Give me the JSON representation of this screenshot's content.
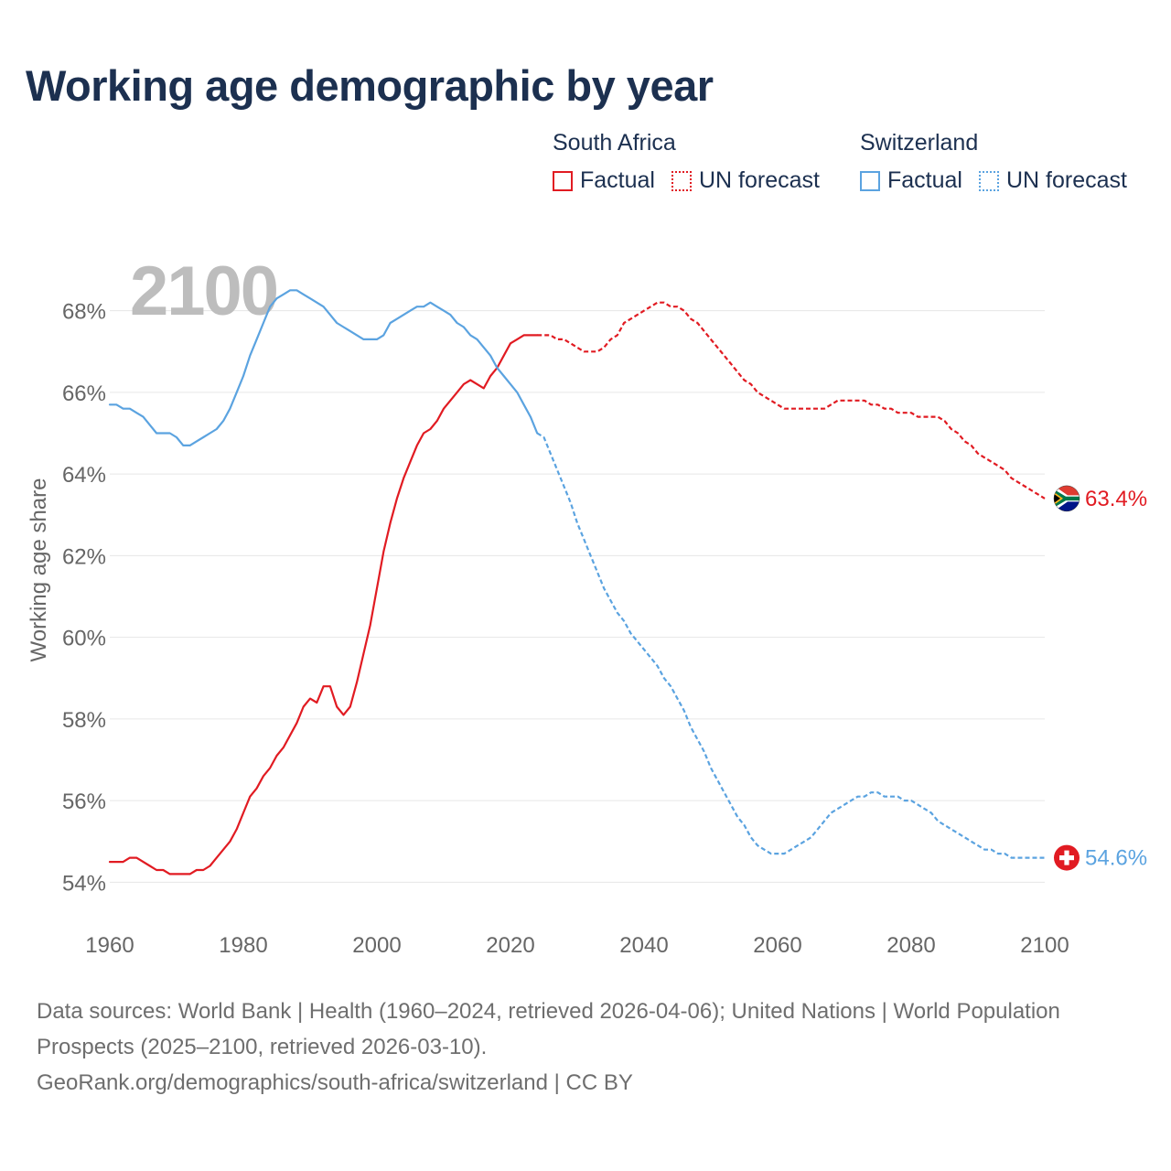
{
  "title": "Working age demographic by year",
  "legend": {
    "groups": [
      {
        "name": "South Africa",
        "factual_label": "Factual",
        "forecast_label": "UN forecast",
        "color": "#e11b22"
      },
      {
        "name": "Switzerland",
        "factual_label": "Factual",
        "forecast_label": "UN forecast",
        "color": "#5ba3e0"
      }
    ]
  },
  "year_watermark": "2100",
  "footer": {
    "line1": "Data sources: World Bank | Health (1960–2024, retrieved 2026-04-06); United Nations | World Population Prospects (2025–2100, retrieved 2026-03-10).",
    "line2": "GeoRank.org/demographics/south-africa/switzerland | CC BY"
  },
  "chart_data": {
    "type": "line",
    "title": "Working age demographic by year",
    "xlabel": "",
    "ylabel": "Working age share",
    "xlim": [
      1960,
      2100
    ],
    "ylim": [
      53,
      69
    ],
    "x_ticks": [
      1960,
      1980,
      2000,
      2020,
      2040,
      2060,
      2080,
      2100
    ],
    "y_ticks": [
      54,
      56,
      58,
      60,
      62,
      64,
      66,
      68
    ],
    "y_tick_suffix": "%",
    "grid": true,
    "factual_end_year": 2024,
    "series": [
      {
        "name": "South Africa",
        "color": "#e11b22",
        "end_label": "63.4%",
        "flag": "south-africa",
        "points": [
          [
            1960,
            54.5
          ],
          [
            1962,
            54.5
          ],
          [
            1963,
            54.6
          ],
          [
            1964,
            54.6
          ],
          [
            1966,
            54.4
          ],
          [
            1967,
            54.3
          ],
          [
            1968,
            54.3
          ],
          [
            1969,
            54.2
          ],
          [
            1972,
            54.2
          ],
          [
            1973,
            54.3
          ],
          [
            1974,
            54.3
          ],
          [
            1975,
            54.4
          ],
          [
            1976,
            54.6
          ],
          [
            1977,
            54.8
          ],
          [
            1978,
            55.0
          ],
          [
            1979,
            55.3
          ],
          [
            1980,
            55.7
          ],
          [
            1981,
            56.1
          ],
          [
            1982,
            56.3
          ],
          [
            1983,
            56.6
          ],
          [
            1984,
            56.8
          ],
          [
            1985,
            57.1
          ],
          [
            1986,
            57.3
          ],
          [
            1987,
            57.6
          ],
          [
            1988,
            57.9
          ],
          [
            1989,
            58.3
          ],
          [
            1990,
            58.5
          ],
          [
            1991,
            58.4
          ],
          [
            1992,
            58.8
          ],
          [
            1993,
            58.8
          ],
          [
            1994,
            58.3
          ],
          [
            1995,
            58.1
          ],
          [
            1996,
            58.3
          ],
          [
            1997,
            58.9
          ],
          [
            1998,
            59.6
          ],
          [
            1999,
            60.3
          ],
          [
            2000,
            61.2
          ],
          [
            2001,
            62.1
          ],
          [
            2002,
            62.8
          ],
          [
            2003,
            63.4
          ],
          [
            2004,
            63.9
          ],
          [
            2005,
            64.3
          ],
          [
            2006,
            64.7
          ],
          [
            2007,
            65.0
          ],
          [
            2008,
            65.1
          ],
          [
            2009,
            65.3
          ],
          [
            2010,
            65.6
          ],
          [
            2011,
            65.8
          ],
          [
            2012,
            66.0
          ],
          [
            2013,
            66.2
          ],
          [
            2014,
            66.3
          ],
          [
            2015,
            66.2
          ],
          [
            2016,
            66.1
          ],
          [
            2017,
            66.4
          ],
          [
            2018,
            66.6
          ],
          [
            2019,
            66.9
          ],
          [
            2020,
            67.2
          ],
          [
            2021,
            67.3
          ],
          [
            2022,
            67.4
          ],
          [
            2023,
            67.4
          ],
          [
            2024,
            67.4
          ],
          [
            2025,
            67.4
          ],
          [
            2026,
            67.4
          ],
          [
            2027,
            67.3
          ],
          [
            2028,
            67.3
          ],
          [
            2029,
            67.2
          ],
          [
            2030,
            67.1
          ],
          [
            2031,
            67.0
          ],
          [
            2032,
            67.0
          ],
          [
            2033,
            67.0
          ],
          [
            2034,
            67.1
          ],
          [
            2035,
            67.3
          ],
          [
            2036,
            67.4
          ],
          [
            2037,
            67.7
          ],
          [
            2038,
            67.8
          ],
          [
            2039,
            67.9
          ],
          [
            2040,
            68.0
          ],
          [
            2041,
            68.1
          ],
          [
            2042,
            68.2
          ],
          [
            2043,
            68.2
          ],
          [
            2044,
            68.1
          ],
          [
            2045,
            68.1
          ],
          [
            2046,
            68.0
          ],
          [
            2047,
            67.8
          ],
          [
            2048,
            67.7
          ],
          [
            2049,
            67.5
          ],
          [
            2050,
            67.3
          ],
          [
            2051,
            67.1
          ],
          [
            2052,
            66.9
          ],
          [
            2053,
            66.7
          ],
          [
            2054,
            66.5
          ],
          [
            2055,
            66.3
          ],
          [
            2056,
            66.2
          ],
          [
            2057,
            66.0
          ],
          [
            2058,
            65.9
          ],
          [
            2059,
            65.8
          ],
          [
            2060,
            65.7
          ],
          [
            2061,
            65.6
          ],
          [
            2062,
            65.6
          ],
          [
            2067,
            65.6
          ],
          [
            2068,
            65.7
          ],
          [
            2069,
            65.8
          ],
          [
            2073,
            65.8
          ],
          [
            2074,
            65.7
          ],
          [
            2075,
            65.7
          ],
          [
            2076,
            65.6
          ],
          [
            2077,
            65.6
          ],
          [
            2078,
            65.5
          ],
          [
            2080,
            65.5
          ],
          [
            2081,
            65.4
          ],
          [
            2084,
            65.4
          ],
          [
            2085,
            65.3
          ],
          [
            2086,
            65.1
          ],
          [
            2087,
            65.0
          ],
          [
            2088,
            64.8
          ],
          [
            2089,
            64.7
          ],
          [
            2090,
            64.5
          ],
          [
            2091,
            64.4
          ],
          [
            2092,
            64.3
          ],
          [
            2093,
            64.2
          ],
          [
            2094,
            64.1
          ],
          [
            2095,
            63.9
          ],
          [
            2096,
            63.8
          ],
          [
            2097,
            63.7
          ],
          [
            2098,
            63.6
          ],
          [
            2099,
            63.5
          ],
          [
            2100,
            63.4
          ]
        ]
      },
      {
        "name": "Switzerland",
        "color": "#5ba3e0",
        "end_label": "54.6%",
        "flag": "switzerland",
        "points": [
          [
            1960,
            65.7
          ],
          [
            1961,
            65.7
          ],
          [
            1962,
            65.6
          ],
          [
            1963,
            65.6
          ],
          [
            1964,
            65.5
          ],
          [
            1965,
            65.4
          ],
          [
            1966,
            65.2
          ],
          [
            1967,
            65.0
          ],
          [
            1968,
            65.0
          ],
          [
            1969,
            65.0
          ],
          [
            1970,
            64.9
          ],
          [
            1971,
            64.7
          ],
          [
            1972,
            64.7
          ],
          [
            1973,
            64.8
          ],
          [
            1974,
            64.9
          ],
          [
            1975,
            65.0
          ],
          [
            1976,
            65.1
          ],
          [
            1977,
            65.3
          ],
          [
            1978,
            65.6
          ],
          [
            1979,
            66.0
          ],
          [
            1980,
            66.4
          ],
          [
            1981,
            66.9
          ],
          [
            1982,
            67.3
          ],
          [
            1983,
            67.7
          ],
          [
            1984,
            68.1
          ],
          [
            1985,
            68.3
          ],
          [
            1986,
            68.4
          ],
          [
            1987,
            68.5
          ],
          [
            1988,
            68.5
          ],
          [
            1989,
            68.4
          ],
          [
            1990,
            68.3
          ],
          [
            1991,
            68.2
          ],
          [
            1992,
            68.1
          ],
          [
            1993,
            67.9
          ],
          [
            1994,
            67.7
          ],
          [
            1995,
            67.6
          ],
          [
            1996,
            67.5
          ],
          [
            1997,
            67.4
          ],
          [
            1998,
            67.3
          ],
          [
            2000,
            67.3
          ],
          [
            2001,
            67.4
          ],
          [
            2002,
            67.7
          ],
          [
            2003,
            67.8
          ],
          [
            2004,
            67.9
          ],
          [
            2005,
            68.0
          ],
          [
            2006,
            68.1
          ],
          [
            2007,
            68.1
          ],
          [
            2008,
            68.2
          ],
          [
            2009,
            68.1
          ],
          [
            2010,
            68.0
          ],
          [
            2011,
            67.9
          ],
          [
            2012,
            67.7
          ],
          [
            2013,
            67.6
          ],
          [
            2014,
            67.4
          ],
          [
            2015,
            67.3
          ],
          [
            2016,
            67.1
          ],
          [
            2017,
            66.9
          ],
          [
            2018,
            66.6
          ],
          [
            2019,
            66.4
          ],
          [
            2020,
            66.2
          ],
          [
            2021,
            66.0
          ],
          [
            2022,
            65.7
          ],
          [
            2023,
            65.4
          ],
          [
            2024,
            65.0
          ],
          [
            2025,
            64.9
          ],
          [
            2026,
            64.5
          ],
          [
            2027,
            64.1
          ],
          [
            2028,
            63.7
          ],
          [
            2029,
            63.3
          ],
          [
            2030,
            62.8
          ],
          [
            2031,
            62.4
          ],
          [
            2032,
            62.0
          ],
          [
            2033,
            61.6
          ],
          [
            2034,
            61.2
          ],
          [
            2035,
            60.9
          ],
          [
            2036,
            60.6
          ],
          [
            2037,
            60.4
          ],
          [
            2038,
            60.1
          ],
          [
            2039,
            59.9
          ],
          [
            2040,
            59.7
          ],
          [
            2041,
            59.5
          ],
          [
            2042,
            59.3
          ],
          [
            2043,
            59.0
          ],
          [
            2044,
            58.8
          ],
          [
            2045,
            58.5
          ],
          [
            2046,
            58.2
          ],
          [
            2047,
            57.8
          ],
          [
            2048,
            57.5
          ],
          [
            2049,
            57.2
          ],
          [
            2050,
            56.8
          ],
          [
            2051,
            56.5
          ],
          [
            2052,
            56.2
          ],
          [
            2053,
            55.9
          ],
          [
            2054,
            55.6
          ],
          [
            2055,
            55.4
          ],
          [
            2056,
            55.1
          ],
          [
            2057,
            54.9
          ],
          [
            2058,
            54.8
          ],
          [
            2059,
            54.7
          ],
          [
            2061,
            54.7
          ],
          [
            2062,
            54.8
          ],
          [
            2063,
            54.9
          ],
          [
            2064,
            55.0
          ],
          [
            2065,
            55.1
          ],
          [
            2066,
            55.3
          ],
          [
            2067,
            55.5
          ],
          [
            2068,
            55.7
          ],
          [
            2069,
            55.8
          ],
          [
            2070,
            55.9
          ],
          [
            2071,
            56.0
          ],
          [
            2072,
            56.1
          ],
          [
            2073,
            56.1
          ],
          [
            2074,
            56.2
          ],
          [
            2075,
            56.2
          ],
          [
            2076,
            56.1
          ],
          [
            2078,
            56.1
          ],
          [
            2079,
            56.0
          ],
          [
            2080,
            56.0
          ],
          [
            2081,
            55.9
          ],
          [
            2082,
            55.8
          ],
          [
            2083,
            55.7
          ],
          [
            2084,
            55.5
          ],
          [
            2085,
            55.4
          ],
          [
            2086,
            55.3
          ],
          [
            2087,
            55.2
          ],
          [
            2088,
            55.1
          ],
          [
            2089,
            55.0
          ],
          [
            2090,
            54.9
          ],
          [
            2091,
            54.8
          ],
          [
            2092,
            54.8
          ],
          [
            2093,
            54.7
          ],
          [
            2094,
            54.7
          ],
          [
            2095,
            54.6
          ],
          [
            2100,
            54.6
          ]
        ]
      }
    ]
  }
}
